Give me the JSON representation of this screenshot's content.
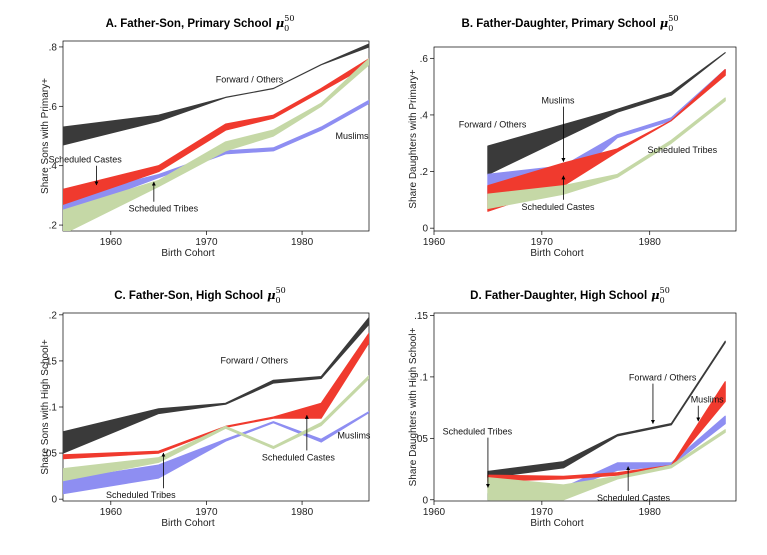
{
  "chart_data": [
    {
      "type": "area",
      "title": "A. Father-Son, Primary School",
      "title_symbol": "μ",
      "title_sub": "0",
      "title_sup": "50",
      "xlabel": "Birth Cohort",
      "ylabel": "Share Sons with Primary+",
      "xlim": [
        1955,
        1987
      ],
      "ylim": [
        0.18,
        0.82
      ],
      "xticks": [
        1960,
        1970,
        1980
      ],
      "xtick_labels": [
        "1960",
        "1970",
        "1980"
      ],
      "yticks": [
        0.2,
        0.4,
        0.6,
        0.8
      ],
      "ytick_labels": [
        ".2",
        ".4",
        ".6",
        ".8"
      ],
      "series": [
        {
          "name": "Forward / Others",
          "color": "#3a3a3a",
          "kind": "band",
          "x": [
            1955,
            1965,
            1972,
            1977,
            1982,
            1987
          ],
          "lower": [
            0.47,
            0.55,
            0.63,
            0.66,
            0.74,
            0.8
          ],
          "upper": [
            0.53,
            0.57,
            0.63,
            0.66,
            0.74,
            0.81
          ]
        },
        {
          "name": "Muslims",
          "color": "#8e8ef2",
          "kind": "band",
          "x": [
            1955,
            1965,
            1972,
            1977,
            1982,
            1987
          ],
          "lower": [
            0.24,
            0.36,
            0.44,
            0.45,
            0.52,
            0.61
          ],
          "upper": [
            0.29,
            0.37,
            0.45,
            0.46,
            0.53,
            0.62
          ]
        },
        {
          "name": "Scheduled Castes",
          "color": "#f03a2e",
          "kind": "band",
          "x": [
            1955,
            1965,
            1972,
            1977,
            1982,
            1987
          ],
          "lower": [
            0.27,
            0.38,
            0.52,
            0.56,
            0.65,
            0.74
          ],
          "upper": [
            0.32,
            0.4,
            0.54,
            0.57,
            0.66,
            0.76
          ]
        },
        {
          "name": "Scheduled Tribes",
          "color": "#c5d8a6",
          "kind": "band",
          "x": [
            1955,
            1965,
            1972,
            1977,
            1982,
            1987
          ],
          "lower": [
            0.17,
            0.33,
            0.45,
            0.5,
            0.6,
            0.74
          ],
          "upper": [
            0.25,
            0.35,
            0.48,
            0.52,
            0.61,
            0.76
          ]
        }
      ],
      "annotations": [
        {
          "text": "Forward / Others",
          "x": 1974.5,
          "y": 0.68,
          "anchor": "middle"
        },
        {
          "text": "Muslims",
          "x": 1983.5,
          "y": 0.49,
          "anchor": "start"
        },
        {
          "text": "Scheduled Castes",
          "x": 1953.5,
          "y": 0.41,
          "anchor": "start",
          "arrow_to": [
            1958.5,
            0.335
          ]
        },
        {
          "text": "Scheduled Tribes",
          "x": 1965.5,
          "y": 0.245,
          "anchor": "middle",
          "arrow_to": [
            1964.5,
            0.345
          ]
        }
      ]
    },
    {
      "type": "area",
      "title": "B. Father-Daughter, Primary School",
      "title_symbol": "μ",
      "title_sub": "0",
      "title_sup": "50",
      "xlabel": "Birth Cohort",
      "ylabel": "Share Daughters with Primary+",
      "xlim": [
        1960,
        1988
      ],
      "ylim": [
        -0.01,
        0.64
      ],
      "xticks": [
        1960,
        1970,
        1980
      ],
      "xtick_labels": [
        "1960",
        "1970",
        "1980"
      ],
      "yticks": [
        0,
        0.2,
        0.4,
        0.6
      ],
      "ytick_labels": [
        "0",
        ".2",
        ".4",
        ".6"
      ],
      "series": [
        {
          "name": "Forward / Others",
          "color": "#3a3a3a",
          "kind": "band",
          "x": [
            1965,
            1977,
            1982,
            1987
          ],
          "lower": [
            0.19,
            0.41,
            0.47,
            0.62
          ],
          "upper": [
            0.29,
            0.42,
            0.48,
            0.62
          ]
        },
        {
          "name": "Muslims",
          "color": "#8e8ef2",
          "kind": "band",
          "x": [
            1965,
            1972,
            1977,
            1982,
            1987
          ],
          "lower": [
            0.1,
            0.15,
            0.32,
            0.38,
            0.55
          ],
          "upper": [
            0.19,
            0.22,
            0.33,
            0.39,
            0.56
          ]
        },
        {
          "name": "Scheduled Castes",
          "color": "#f03a2e",
          "kind": "band",
          "x": [
            1965,
            1972,
            1977,
            1982,
            1987
          ],
          "lower": [
            0.06,
            0.15,
            0.27,
            0.38,
            0.54
          ],
          "upper": [
            0.15,
            0.23,
            0.28,
            0.38,
            0.56
          ]
        },
        {
          "name": "Scheduled Tribes",
          "color": "#c5d8a6",
          "kind": "band",
          "x": [
            1965,
            1972,
            1977,
            1982,
            1987
          ],
          "lower": [
            0.07,
            0.12,
            0.18,
            0.3,
            0.45
          ],
          "upper": [
            0.12,
            0.15,
            0.19,
            0.31,
            0.46
          ]
        }
      ],
      "annotations": [
        {
          "text": "Forward / Others",
          "x": 1962.3,
          "y": 0.355,
          "anchor": "start"
        },
        {
          "text": "Muslims",
          "x": 1971.5,
          "y": 0.44,
          "anchor": "middle",
          "arrow_to": [
            1972,
            0.235
          ]
        },
        {
          "text": "Scheduled Tribes",
          "x": 1979.8,
          "y": 0.265,
          "anchor": "start"
        },
        {
          "text": "Scheduled Castes",
          "x": 1971.5,
          "y": 0.065,
          "anchor": "middle",
          "arrow_to": [
            1972,
            0.185
          ]
        }
      ]
    },
    {
      "type": "area",
      "title": "C. Father-Son, High School",
      "title_symbol": "μ",
      "title_sub": "0",
      "title_sup": "50",
      "xlabel": "Birth Cohort",
      "ylabel": "Share Sons with High School+",
      "xlim": [
        1955,
        1987
      ],
      "ylim": [
        -0.002,
        0.202
      ],
      "xticks": [
        1960,
        1970,
        1980
      ],
      "xtick_labels": [
        "1960",
        "1970",
        "1980"
      ],
      "yticks": [
        0,
        0.05,
        0.1,
        0.15,
        0.2
      ],
      "ytick_labels": [
        "0",
        ".05",
        ".1",
        ".15",
        ".2"
      ],
      "series": [
        {
          "name": "Forward / Others",
          "color": "#3a3a3a",
          "kind": "band",
          "x": [
            1955,
            1965,
            1972,
            1977,
            1982,
            1987
          ],
          "lower": [
            0.05,
            0.093,
            0.103,
            0.126,
            0.131,
            0.19
          ],
          "upper": [
            0.073,
            0.098,
            0.104,
            0.129,
            0.133,
            0.197
          ]
        },
        {
          "name": "Muslims",
          "color": "#8e8ef2",
          "kind": "band",
          "x": [
            1955,
            1965,
            1972,
            1977,
            1982,
            1987
          ],
          "lower": [
            0.006,
            0.023,
            0.063,
            0.083,
            0.062,
            0.094
          ],
          "upper": [
            0.021,
            0.037,
            0.065,
            0.084,
            0.065,
            0.095
          ]
        },
        {
          "name": "Scheduled Castes",
          "color": "#f03a2e",
          "kind": "band",
          "x": [
            1955,
            1965,
            1972,
            1977,
            1982,
            1987
          ],
          "lower": [
            0.044,
            0.05,
            0.078,
            0.088,
            0.088,
            0.17
          ],
          "upper": [
            0.048,
            0.052,
            0.079,
            0.089,
            0.104,
            0.18
          ]
        },
        {
          "name": "Scheduled Tribes",
          "color": "#c5d8a6",
          "kind": "band",
          "x": [
            1955,
            1965,
            1972,
            1977,
            1982,
            1987
          ],
          "lower": [
            0.02,
            0.04,
            0.077,
            0.055,
            0.08,
            0.131
          ],
          "upper": [
            0.033,
            0.045,
            0.079,
            0.057,
            0.083,
            0.134
          ]
        }
      ],
      "annotations": [
        {
          "text": "Forward / Others",
          "x": 1975,
          "y": 0.147,
          "anchor": "middle"
        },
        {
          "text": "Muslims",
          "x": 1983.7,
          "y": 0.066,
          "anchor": "start"
        },
        {
          "text": "Scheduled Castes",
          "x": 1975.8,
          "y": 0.042,
          "anchor": "start",
          "arrow_to": [
            1980.5,
            0.091
          ]
        },
        {
          "text": "Scheduled Tribes",
          "x": 1959.5,
          "y": 0.001,
          "anchor": "start",
          "arrow_to": [
            1965.5,
            0.05
          ]
        }
      ]
    },
    {
      "type": "area",
      "title": "D. Father-Daughter, High School",
      "title_symbol": "μ",
      "title_sub": "0",
      "title_sup": "50",
      "xlabel": "Birth Cohort",
      "ylabel": "Share Daughters with High School+",
      "xlim": [
        1960,
        1988
      ],
      "ylim": [
        -0.001,
        0.152
      ],
      "xticks": [
        1960,
        1970,
        1980
      ],
      "xtick_labels": [
        "1960",
        "1970",
        "1980"
      ],
      "yticks": [
        0,
        0.05,
        0.1,
        0.15
      ],
      "ytick_labels": [
        "0",
        ".05",
        ".1",
        ".15"
      ],
      "series": [
        {
          "name": "Forward / Others",
          "color": "#3a3a3a",
          "kind": "band",
          "x": [
            1965,
            1972,
            1977,
            1982,
            1987
          ],
          "lower": [
            0.018,
            0.026,
            0.052,
            0.061,
            0.128
          ],
          "upper": [
            0.023,
            0.031,
            0.053,
            0.062,
            0.129
          ]
        },
        {
          "name": "Muslims",
          "color": "#8e8ef2",
          "kind": "band",
          "x": [
            1965,
            1972,
            1977,
            1982,
            1987
          ],
          "lower": [
            0.0,
            0.008,
            0.024,
            0.028,
            0.062
          ],
          "upper": [
            0.005,
            0.01,
            0.03,
            0.03,
            0.068
          ]
        },
        {
          "name": "Scheduled Castes",
          "color": "#f03a2e",
          "kind": "band",
          "x": [
            1965,
            1972,
            1977,
            1982,
            1987
          ],
          "lower": [
            0.015,
            0.017,
            0.02,
            0.027,
            0.08
          ],
          "upper": [
            0.02,
            0.019,
            0.022,
            0.028,
            0.096
          ]
        },
        {
          "name": "Scheduled Tribes",
          "color": "#c5d8a6",
          "kind": "band",
          "x": [
            1965,
            1972,
            1977,
            1982,
            1987
          ],
          "lower": [
            0.0,
            0.0,
            0.017,
            0.026,
            0.055
          ],
          "upper": [
            0.018,
            0.012,
            0.019,
            0.028,
            0.057
          ]
        }
      ],
      "annotations": [
        {
          "text": "Forward / Others",
          "x": 1981.2,
          "y": 0.097,
          "anchor": "middle",
          "arrow_to": [
            1980.3,
            0.062
          ]
        },
        {
          "text": "Muslims",
          "x": 1983.8,
          "y": 0.079,
          "anchor": "start",
          "arrow_to": [
            1984.5,
            0.064
          ]
        },
        {
          "text": "Scheduled Tribes",
          "x": 1960.8,
          "y": 0.053,
          "anchor": "start",
          "arrow_to": [
            1965,
            0.01
          ]
        },
        {
          "text": "Scheduled Castes",
          "x": 1978.5,
          "y": -0.001,
          "anchor": "middle",
          "arrow_to": [
            1978,
            0.027
          ]
        }
      ]
    }
  ]
}
